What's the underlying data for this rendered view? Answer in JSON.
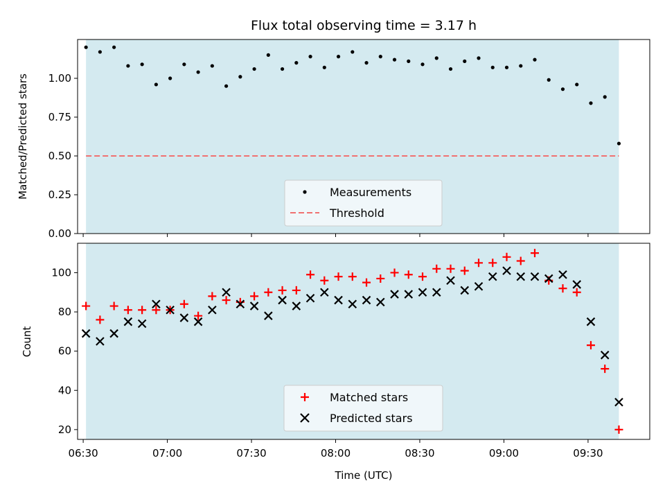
{
  "figure": {
    "title": "Flux total observing time = 3.17 h"
  },
  "chart_data": [
    {
      "type": "scatter",
      "ylabel": "Matched/Predicted stars",
      "ylim": [
        0.0,
        1.25
      ],
      "yticks": [
        "0.00",
        "0.25",
        "0.50",
        "0.75",
        "1.00"
      ],
      "ytick_values": [
        0.0,
        0.25,
        0.5,
        0.75,
        1.0
      ],
      "xlim": [
        "06:28",
        "09:52"
      ],
      "shaded_span": [
        "06:31",
        "09:41"
      ],
      "shade_color": "#d4eaf0",
      "grid": false,
      "legend_position": "lower center",
      "series": [
        {
          "name": "Measurements",
          "marker": "dot",
          "color": "#000000",
          "x": [
            "06:31",
            "06:36",
            "06:41",
            "06:46",
            "06:51",
            "06:56",
            "07:01",
            "07:06",
            "07:11",
            "07:16",
            "07:21",
            "07:26",
            "07:31",
            "07:36",
            "07:41",
            "07:46",
            "07:51",
            "07:56",
            "08:01",
            "08:06",
            "08:11",
            "08:16",
            "08:21",
            "08:26",
            "08:31",
            "08:36",
            "08:41",
            "08:46",
            "08:51",
            "08:56",
            "09:01",
            "09:06",
            "09:11",
            "09:16",
            "09:21",
            "09:26",
            "09:31",
            "09:36",
            "09:41"
          ],
          "y": [
            1.2,
            1.17,
            1.2,
            1.08,
            1.09,
            0.96,
            1.0,
            1.09,
            1.04,
            1.08,
            0.95,
            1.01,
            1.06,
            1.15,
            1.06,
            1.1,
            1.14,
            1.07,
            1.14,
            1.17,
            1.1,
            1.14,
            1.12,
            1.11,
            1.09,
            1.13,
            1.06,
            1.11,
            1.13,
            1.07,
            1.07,
            1.08,
            1.12,
            0.99,
            0.93,
            0.96,
            0.84,
            0.88,
            0.58
          ]
        },
        {
          "name": "Threshold",
          "style": "dashed",
          "color": "#f07070",
          "y_constant": 0.5
        }
      ]
    },
    {
      "type": "scatter",
      "xlabel": "Time (UTC)",
      "ylabel": "Count",
      "ylim": [
        15,
        115
      ],
      "yticks": [
        "20",
        "40",
        "60",
        "80",
        "100"
      ],
      "ytick_values": [
        20,
        40,
        60,
        80,
        100
      ],
      "xlim": [
        "06:28",
        "09:52"
      ],
      "xticks": [
        "06:30",
        "07:00",
        "07:30",
        "08:00",
        "08:30",
        "09:00",
        "09:30"
      ],
      "shaded_span": [
        "06:31",
        "09:41"
      ],
      "shade_color": "#d4eaf0",
      "grid": false,
      "legend_position": "lower center",
      "series": [
        {
          "name": "Matched stars",
          "marker": "plus",
          "color": "#ff0000",
          "x": [
            "06:31",
            "06:36",
            "06:41",
            "06:46",
            "06:51",
            "06:56",
            "07:01",
            "07:06",
            "07:11",
            "07:16",
            "07:21",
            "07:26",
            "07:31",
            "07:36",
            "07:41",
            "07:46",
            "07:51",
            "07:56",
            "08:01",
            "08:06",
            "08:11",
            "08:16",
            "08:21",
            "08:26",
            "08:31",
            "08:36",
            "08:41",
            "08:46",
            "08:51",
            "08:56",
            "09:01",
            "09:06",
            "09:11",
            "09:16",
            "09:21",
            "09:26",
            "09:31",
            "09:36",
            "09:41"
          ],
          "y": [
            83,
            76,
            83,
            81,
            81,
            81,
            81,
            84,
            78,
            88,
            86,
            85,
            88,
            90,
            91,
            91,
            99,
            96,
            98,
            98,
            95,
            97,
            100,
            99,
            98,
            102,
            102,
            101,
            105,
            105,
            108,
            106,
            110,
            96,
            92,
            90,
            63,
            51,
            20
          ]
        },
        {
          "name": "Predicted stars",
          "marker": "x",
          "color": "#000000",
          "x": [
            "06:31",
            "06:36",
            "06:41",
            "06:46",
            "06:51",
            "06:56",
            "07:01",
            "07:06",
            "07:11",
            "07:16",
            "07:21",
            "07:26",
            "07:31",
            "07:36",
            "07:41",
            "07:46",
            "07:51",
            "07:56",
            "08:01",
            "08:06",
            "08:11",
            "08:16",
            "08:21",
            "08:26",
            "08:31",
            "08:36",
            "08:41",
            "08:46",
            "08:51",
            "08:56",
            "09:01",
            "09:06",
            "09:11",
            "09:16",
            "09:21",
            "09:26",
            "09:31",
            "09:36",
            "09:41"
          ],
          "y": [
            69,
            65,
            69,
            75,
            74,
            84,
            81,
            77,
            75,
            81,
            90,
            84,
            83,
            78,
            86,
            83,
            87,
            90,
            86,
            84,
            86,
            85,
            89,
            89,
            90,
            90,
            96,
            91,
            93,
            98,
            101,
            98,
            98,
            97,
            99,
            94,
            75,
            58,
            34
          ]
        }
      ]
    }
  ]
}
